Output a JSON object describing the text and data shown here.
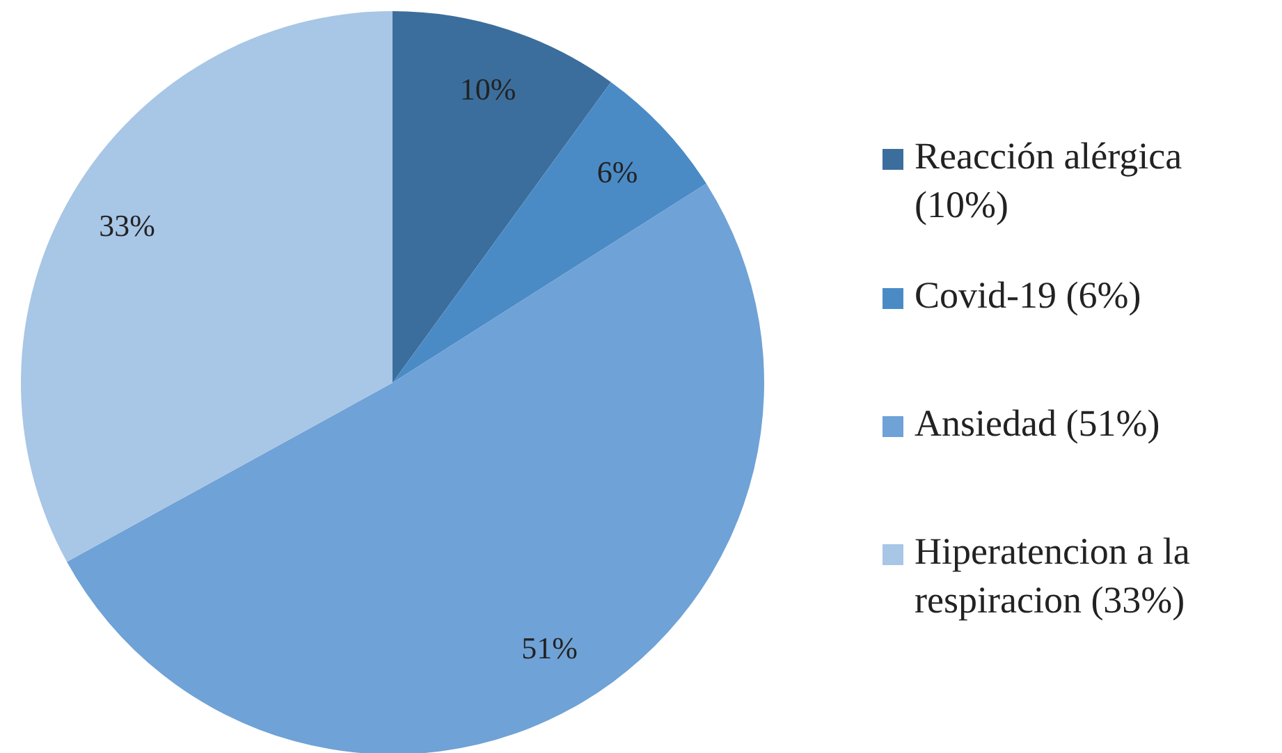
{
  "chart_data": {
    "type": "pie",
    "categories": [
      "Reacción alérgica (10%)",
      "Covid-19 (6%)",
      "Ansiedad (51%)",
      "Hiperatencion a la respiracion (33%)"
    ],
    "values": [
      10,
      6,
      51,
      33
    ],
    "colors": [
      "#3b6e9c",
      "#4a8bc6",
      "#6fa2d6",
      "#a8c6e6"
    ],
    "value_labels": [
      "10%",
      "6%",
      "51%",
      "33%"
    ],
    "legend": "right"
  }
}
